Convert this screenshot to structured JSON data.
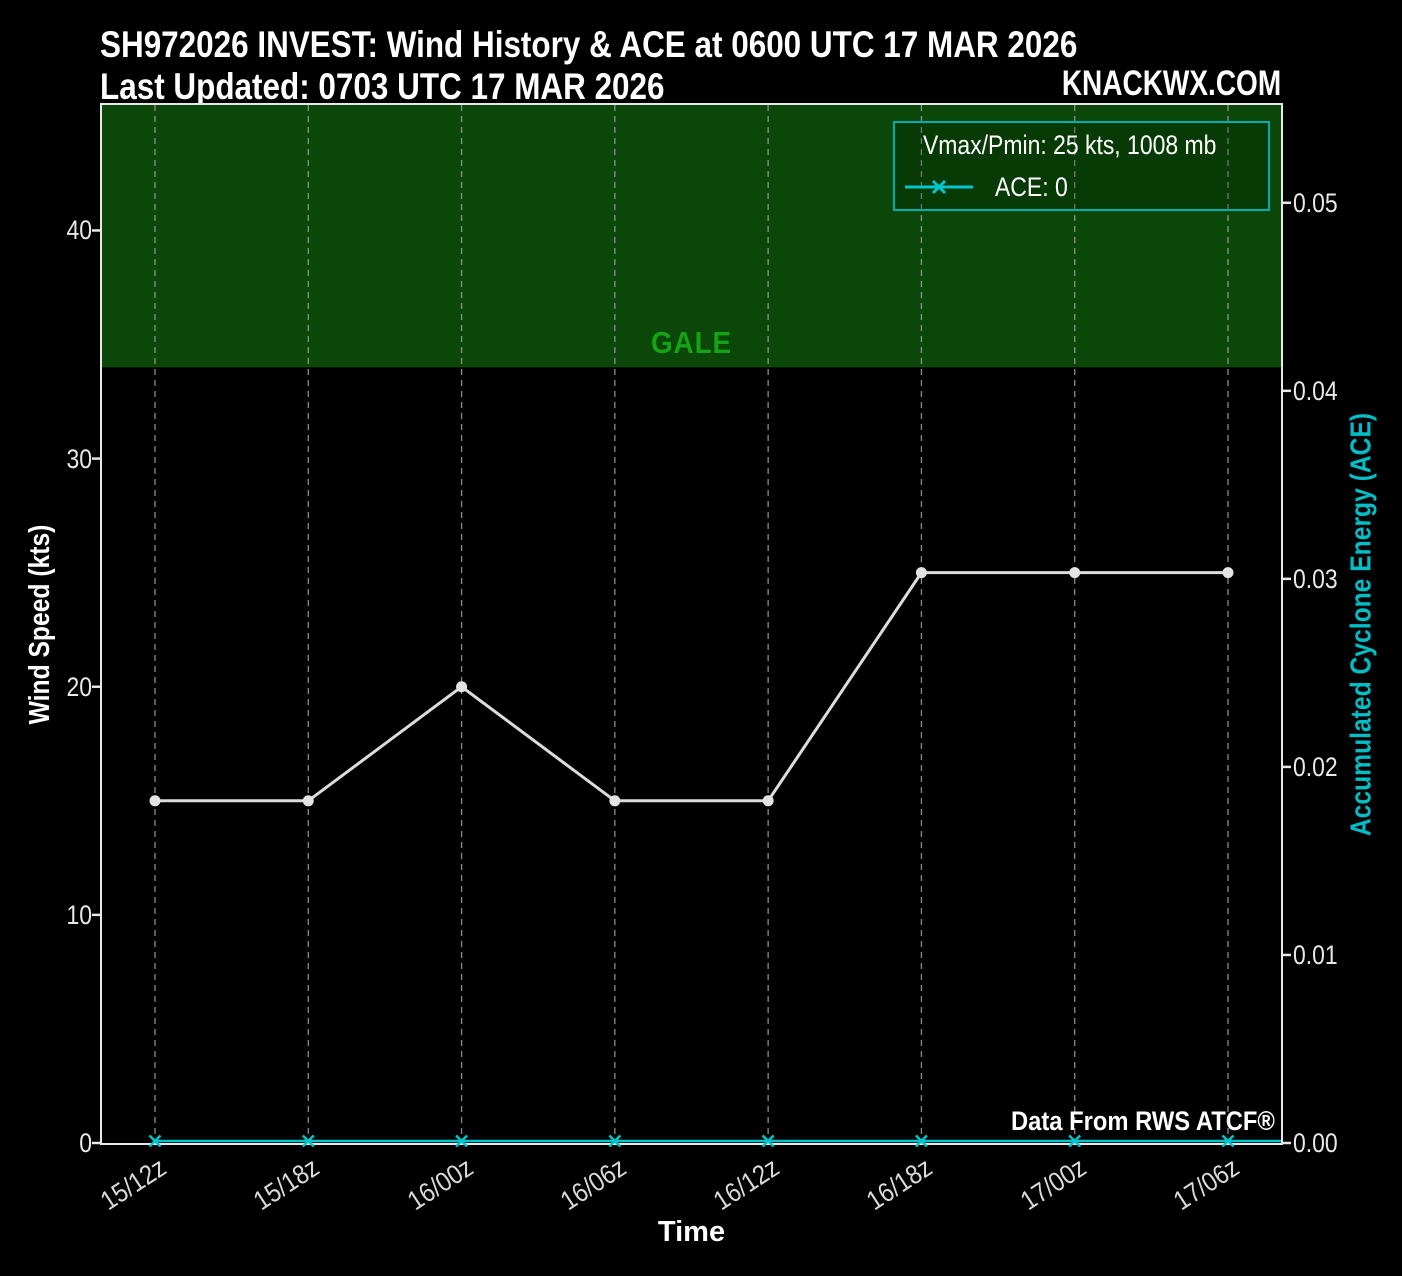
{
  "header": {
    "title": "SH972026 INVEST: Wind History & ACE at 0600 UTC 17 MAR 2026",
    "subtitle": "Last Updated: 0703 UTC 17 MAR 2026",
    "brand": "KNACKWX.COM"
  },
  "chart_data": {
    "type": "line",
    "title": "SH972026 INVEST: Wind History & ACE at 0600 UTC 17 MAR 2026",
    "subtitle": "Last Updated: 0703 UTC 17 MAR 2026",
    "x_categories": [
      "15/12z",
      "15/18z",
      "16/00z",
      "16/06z",
      "16/12z",
      "16/18z",
      "17/00z",
      "17/06z"
    ],
    "xlabel": "Time",
    "series": [
      {
        "name": "Vmax/Pmin: 25 kts, 1008 mb",
        "axis": "left",
        "marker": "circle",
        "color": "#dcdcdc",
        "values": [
          15,
          15,
          20,
          15,
          15,
          25,
          25,
          25
        ]
      },
      {
        "name": "ACE: 0",
        "axis": "right",
        "marker": "x",
        "color": "#00c6cd",
        "values": [
          0,
          0,
          0,
          0,
          0,
          0,
          0,
          0
        ]
      }
    ],
    "left_axis": {
      "label": "Wind Speed (kts)",
      "ticks": [
        0,
        10,
        20,
        30,
        40
      ],
      "range": [
        0,
        45.5
      ]
    },
    "right_axis": {
      "label": "Accumulated Cyclone Energy (ACE)",
      "ticks": [
        "0.00",
        "0.01",
        "0.02",
        "0.03",
        "0.04",
        "0.05"
      ],
      "range": [
        0,
        0.0552
      ]
    },
    "gale": {
      "label": "GALE",
      "threshold_kts": 34
    },
    "source": "Data From RWS ATCF®",
    "legend_position": "upper right",
    "grid": "vertical-dashed"
  },
  "colors": {
    "background": "#000000",
    "gale_region": "#0a4708",
    "gale_text": "#15a315",
    "wind_line": "#dcdcdc",
    "ace_line": "#00c6cd",
    "gridline": "#9a9a9a",
    "spine": "#e8e8e8",
    "legend_border": "#00adb5",
    "text": "#ffffff"
  }
}
